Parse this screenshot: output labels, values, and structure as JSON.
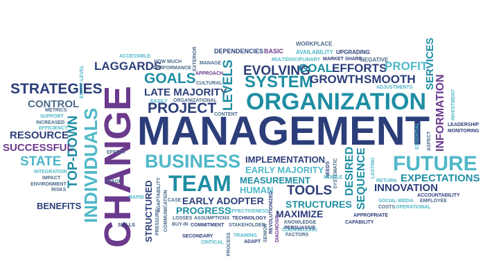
{
  "cloud": {
    "colors": {
      "navy": "#2c3e7a",
      "teal": "#1e8ea3",
      "purple": "#6b3a8c",
      "light": "#4fb8c8",
      "slate": "#4a6a8a"
    },
    "words": {
      "management": "MANAGEMENT",
      "change": "CHANGE",
      "organization": "ORGANIZATION",
      "individuals": "INDIVIDUALS",
      "team": "TEAM",
      "business": "BUSINESS",
      "future": "FUTURE",
      "strategies": "STRATEGIES",
      "project": "PROJECT",
      "system": "SYSTEM",
      "evolving": "EVOLVING",
      "goals": "GOALS",
      "late_majority": "LATE MAJORITY",
      "laggards": "LAGGARDS",
      "top_down": "TOP-DOWN",
      "control": "CONTROL",
      "resource": "RESOURCE",
      "successful": "SUCCESSFUL",
      "state": "STATE",
      "benefits": "BENEFITS",
      "structured": "STRUCTURED",
      "progress": "PROGRESS",
      "early_adopter": "EARLY ADOPTER",
      "maximize": "MAXIMIZE",
      "tools": "TOOLS",
      "structures": "STRUCTURES",
      "measurement": "MEASUREMENT",
      "human": "HUMAN",
      "implementation": "IMPLEMENTATION",
      "early_majority": "EARLY MAJORITY",
      "innovation": "INNOVATION",
      "expectations": "EXPECTATIONS",
      "sequence": "SEQUENCE",
      "desired": "DESIRED",
      "information": "INFORMATION",
      "services": "SERVICES",
      "profit": "PROFIT",
      "smooth": "SMOOTH",
      "growth": "GROWTH",
      "goal": "GOAL",
      "efforts": "EFFORTS",
      "levels": "LEVELS",
      "upgrading": "UPGRADING",
      "availability": "AVAILABILITY",
      "workplace": "WORKPLACE",
      "market_share": "MARKET SHARE",
      "negative": "NEGATIVE",
      "multidisciplinary": "MULTIDISCIPLINARY",
      "dependencies": "DEPENDENCIES",
      "basic": "BASIC",
      "adjustments": "ADJUSTMENTS",
      "accessible": "ACCESSIBLE",
      "how_much": "HOW MUCH",
      "performance": "PERFORMANCE",
      "exterior": "EXTERIOR",
      "manage": "MANAGE",
      "approach": "APPROACH",
      "cultural": "CULTURAL",
      "easily": "EASILY",
      "organizational": "ORGANIZATIONAL",
      "content": "CONTENT",
      "entry_level": "ENTRY-LEVEL",
      "metrics": "METRICS",
      "support": "SUPPORT",
      "increased": "INCREASED",
      "efficiency": "EFFICIENCY",
      "effect": "EFFECT",
      "integration": "INTEGRATION",
      "impact": "IMPACT",
      "environment": "ENVIRONMENT",
      "risks": "RISKS",
      "stage": "STAGE",
      "rapid": "RAPID",
      "skills": "SKILLS",
      "adaptability": "ADAPTABILITY",
      "pressure": "PRESSURE",
      "communication": "COMMUNICATION",
      "case": "CASE",
      "losses": "LOSSES",
      "buy_in": "BUY-IN",
      "assumptions": "ASSUMPTIONS",
      "commitment": "COMMITMENT",
      "effectiveness": "EFFECTIVENESS",
      "technology": "TECHNOLOGY",
      "stakeholder": "STAKEHOLDER",
      "secondary": "SECONDARY",
      "critical": "CRITICAL",
      "process": "PROCESS",
      "training": "TRAINING",
      "adapt": "ADAPT",
      "counselling": "COUNSELLING",
      "senior": "SENIOR",
      "revolutionized": "REVOLUTIONIZED",
      "diagnosis": "DIAGNOSIS",
      "knowledge": "KNOWLEDGE",
      "persuasive": "PERSUASIVE",
      "factors": "FACTORS",
      "needs": "NEEDS",
      "systematic": "SYSTEMATIC",
      "mobile": "MOBILE",
      "lasting": "LASTING",
      "return": "RETURN",
      "social_media": "SOCIAL MEDIA",
      "employee": "EMPLOYEE",
      "costs": "COSTS",
      "operational": "OPERATIONAL",
      "accountability": "ACCOUNTABILITY",
      "appropriate": "APPROPRIATE",
      "capability": "CAPABILITY",
      "leadership": "LEADERSHIP",
      "monitoring": "MONITORING",
      "aspect": "ASPECT",
      "investment": "INVESTMENT",
      "essential": "ESSENTIAL"
    }
  }
}
